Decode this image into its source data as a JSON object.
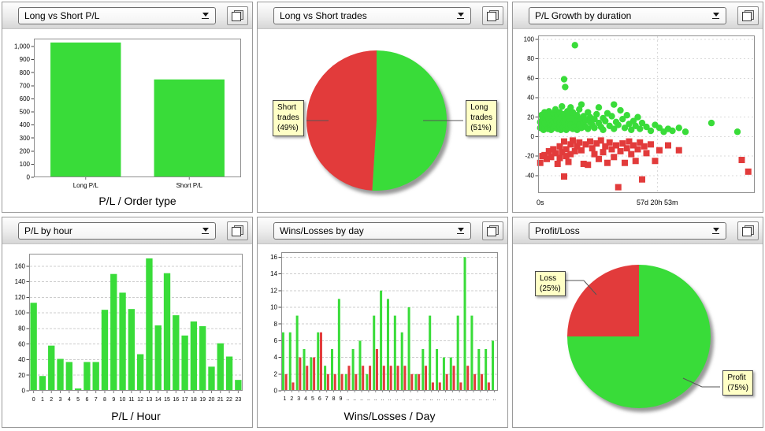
{
  "colors": {
    "green": "#39DC39",
    "red": "#E23B3B",
    "callout_bg": "#FFFFC6"
  },
  "panels": [
    {
      "id": 0,
      "dropdown_value": "Long vs Short P/L"
    },
    {
      "id": 1,
      "dropdown_value": "Long vs Short trades"
    },
    {
      "id": 2,
      "dropdown_value": "P/L Growth by duration"
    },
    {
      "id": 3,
      "dropdown_value": "P/L by hour"
    },
    {
      "id": 4,
      "dropdown_value": "Wins/Losses by day"
    },
    {
      "id": 5,
      "dropdown_value": "Profit/Loss"
    }
  ],
  "chart_data": [
    {
      "type": "bar",
      "title": "P/L / Order type",
      "categories": [
        "Long P/L",
        "Short P/L"
      ],
      "values": [
        1030,
        748
      ],
      "yticks": [
        0,
        100,
        200,
        300,
        400,
        500,
        600,
        700,
        800,
        900,
        1000
      ],
      "ylim": [
        0,
        1060
      ],
      "grid": false
    },
    {
      "type": "pie",
      "slices": [
        {
          "label": "Long trades",
          "pct": 51,
          "color": "#39DC39"
        },
        {
          "label": "Short trades",
          "pct": 49,
          "color": "#E23B3B"
        }
      ],
      "callout_left": "Short\ntrades\n(49%)",
      "callout_right": "Long\ntrades\n(51%)"
    },
    {
      "type": "scatter",
      "yticks": [
        -40,
        -20,
        0,
        20,
        40,
        60,
        80,
        100
      ],
      "ylim": [
        -58,
        104
      ],
      "x_axis_labels": [
        "0s",
        "57d 20h 53m"
      ],
      "x_gridline_frac": 0.55,
      "wins": [
        [
          1,
          15
        ],
        [
          1,
          9
        ],
        [
          1.5,
          22
        ],
        [
          2,
          12
        ],
        [
          2,
          18
        ],
        [
          2.5,
          7
        ],
        [
          3,
          25
        ],
        [
          3,
          14
        ],
        [
          3,
          9
        ],
        [
          3.5,
          19
        ],
        [
          4,
          11
        ],
        [
          4,
          16
        ],
        [
          4,
          22
        ],
        [
          4.5,
          8
        ],
        [
          5,
          13
        ],
        [
          5,
          18
        ],
        [
          5,
          26
        ],
        [
          5.5,
          10
        ],
        [
          6,
          15
        ],
        [
          6,
          21
        ],
        [
          6,
          7
        ],
        [
          6.5,
          12
        ],
        [
          7,
          17
        ],
        [
          7,
          9
        ],
        [
          7,
          24
        ],
        [
          7.5,
          14
        ],
        [
          8,
          19
        ],
        [
          8,
          11
        ],
        [
          8,
          28
        ],
        [
          8.5,
          16
        ],
        [
          9,
          8
        ],
        [
          9,
          13
        ],
        [
          9,
          22
        ],
        [
          9.5,
          18
        ],
        [
          10,
          10
        ],
        [
          10,
          15
        ],
        [
          10,
          25
        ],
        [
          10.5,
          7
        ],
        [
          11,
          12
        ],
        [
          11,
          20
        ],
        [
          11,
          31
        ],
        [
          11.5,
          9
        ],
        [
          12,
          16
        ],
        [
          12,
          23
        ],
        [
          12,
          59
        ],
        [
          12.5,
          51
        ],
        [
          13,
          11
        ],
        [
          13,
          18
        ],
        [
          13,
          7
        ],
        [
          13.5,
          26
        ],
        [
          14,
          14
        ],
        [
          14,
          21
        ],
        [
          14,
          9
        ],
        [
          15,
          17
        ],
        [
          15,
          12
        ],
        [
          15,
          30
        ],
        [
          16,
          8
        ],
        [
          16,
          19
        ],
        [
          16,
          25
        ],
        [
          17,
          94
        ],
        [
          17,
          13
        ],
        [
          17,
          10
        ],
        [
          18,
          16
        ],
        [
          18,
          22
        ],
        [
          18,
          7
        ],
        [
          19,
          12
        ],
        [
          19,
          28
        ],
        [
          20,
          18
        ],
        [
          20,
          9
        ],
        [
          20,
          33
        ],
        [
          21,
          14
        ],
        [
          21,
          21
        ],
        [
          22,
          10
        ],
        [
          22,
          17
        ],
        [
          23,
          25
        ],
        [
          23,
          8
        ],
        [
          24,
          15
        ],
        [
          24,
          20
        ],
        [
          25,
          12
        ],
        [
          26,
          18
        ],
        [
          26,
          9
        ],
        [
          27,
          23
        ],
        [
          28,
          14
        ],
        [
          28,
          30
        ],
        [
          29,
          10
        ],
        [
          30,
          19
        ],
        [
          30,
          7
        ],
        [
          31,
          16
        ],
        [
          32,
          24
        ],
        [
          33,
          11
        ],
        [
          34,
          21
        ],
        [
          35,
          33
        ],
        [
          35,
          8
        ],
        [
          36,
          15
        ],
        [
          37,
          12
        ],
        [
          38,
          27
        ],
        [
          39,
          18
        ],
        [
          40,
          9
        ],
        [
          41,
          22
        ],
        [
          42,
          13
        ],
        [
          43,
          7
        ],
        [
          44,
          16
        ],
        [
          45,
          11
        ],
        [
          46,
          20
        ],
        [
          47,
          8
        ],
        [
          48,
          14
        ],
        [
          50,
          10
        ],
        [
          52,
          6
        ],
        [
          54,
          12
        ],
        [
          56,
          9
        ],
        [
          58,
          5
        ],
        [
          60,
          8
        ],
        [
          62,
          6
        ],
        [
          65,
          9
        ],
        [
          68,
          5
        ],
        [
          80,
          14
        ],
        [
          92,
          5
        ]
      ],
      "losses": [
        [
          1,
          -27
        ],
        [
          2,
          -20
        ],
        [
          3,
          -19
        ],
        [
          4,
          -23
        ],
        [
          5,
          -15
        ],
        [
          6,
          -21
        ],
        [
          7,
          -13
        ],
        [
          8,
          -17
        ],
        [
          9,
          -28
        ],
        [
          10,
          -10
        ],
        [
          10,
          -22
        ],
        [
          11,
          -16
        ],
        [
          12,
          -5
        ],
        [
          12,
          -41
        ],
        [
          13,
          -20
        ],
        [
          13,
          -13
        ],
        [
          14,
          -26
        ],
        [
          15,
          -8
        ],
        [
          15,
          -18
        ],
        [
          16,
          -4
        ],
        [
          17,
          -15
        ],
        [
          18,
          -10
        ],
        [
          19,
          -6
        ],
        [
          20,
          -14
        ],
        [
          21,
          -28
        ],
        [
          22,
          -8
        ],
        [
          23,
          -29
        ],
        [
          24,
          -5
        ],
        [
          25,
          -12
        ],
        [
          26,
          -18
        ],
        [
          27,
          -7
        ],
        [
          28,
          -23
        ],
        [
          29,
          -4
        ],
        [
          30,
          -16
        ],
        [
          31,
          -10
        ],
        [
          32,
          -27
        ],
        [
          33,
          -6
        ],
        [
          34,
          -13
        ],
        [
          35,
          -21
        ],
        [
          36,
          -9
        ],
        [
          37,
          -52
        ],
        [
          38,
          -15
        ],
        [
          39,
          -7
        ],
        [
          40,
          -27
        ],
        [
          41,
          -12
        ],
        [
          42,
          -5
        ],
        [
          43,
          -18
        ],
        [
          44,
          -9
        ],
        [
          45,
          -25
        ],
        [
          46,
          -13
        ],
        [
          47,
          -6
        ],
        [
          48,
          -44
        ],
        [
          49,
          -10
        ],
        [
          50,
          -17
        ],
        [
          52,
          -8
        ],
        [
          54,
          -25
        ],
        [
          56,
          -14
        ],
        [
          60,
          -9
        ],
        [
          65,
          -14
        ],
        [
          94,
          -24
        ],
        [
          97,
          -36
        ]
      ]
    },
    {
      "type": "bar",
      "title": "P/L / Hour",
      "categories": [
        "0",
        "1",
        "2",
        "3",
        "4",
        "5",
        "6",
        "7",
        "8",
        "9",
        "10",
        "11",
        "12",
        "13",
        "14",
        "15",
        "16",
        "17",
        "18",
        "19",
        "20",
        "21",
        "22",
        "23"
      ],
      "values": [
        113,
        19,
        58,
        41,
        37,
        3,
        37,
        37,
        104,
        150,
        126,
        105,
        47,
        170,
        84,
        151,
        97,
        71,
        89,
        83,
        31,
        61,
        44,
        14
      ],
      "yticks": [
        0,
        20,
        40,
        60,
        80,
        100,
        120,
        140,
        160
      ],
      "ylim": [
        0,
        176
      ],
      "grid": true
    },
    {
      "type": "pairbar",
      "title": "Wins/Losses / Day",
      "labels": [
        "1",
        "2",
        "3",
        "4",
        "5",
        "6",
        "7",
        "8",
        "9",
        "..",
        "..",
        "..",
        "..",
        "..",
        "..",
        "..",
        "..",
        "..",
        "..",
        "..",
        "..",
        "..",
        "..",
        "..",
        "..",
        "..",
        "..",
        "..",
        "..",
        "..",
        ".."
      ],
      "wins": [
        7,
        7,
        9,
        5,
        4,
        7,
        3,
        5,
        11,
        2,
        5,
        6,
        2,
        9,
        12,
        11,
        9,
        7,
        10,
        2,
        5,
        9,
        5,
        4,
        4,
        9,
        16,
        9,
        5,
        5,
        6
      ],
      "losses": [
        2,
        1,
        4,
        3,
        4,
        7,
        2,
        2,
        2,
        3,
        2,
        3,
        3,
        5,
        3,
        3,
        3,
        3,
        2,
        2,
        3,
        1,
        1,
        2,
        3,
        1,
        3,
        2,
        2,
        1,
        0
      ],
      "yticks": [
        0,
        2,
        4,
        6,
        8,
        10,
        12,
        14,
        16
      ],
      "ylim": [
        0,
        16.6
      ],
      "grid": true
    },
    {
      "type": "pie",
      "slices": [
        {
          "label": "Profit",
          "pct": 75,
          "color": "#39DC39"
        },
        {
          "label": "Loss",
          "pct": 25,
          "color": "#E23B3B"
        }
      ],
      "callout_left": "Loss\n(25%)",
      "callout_right": "Profit\n(75%)"
    }
  ]
}
